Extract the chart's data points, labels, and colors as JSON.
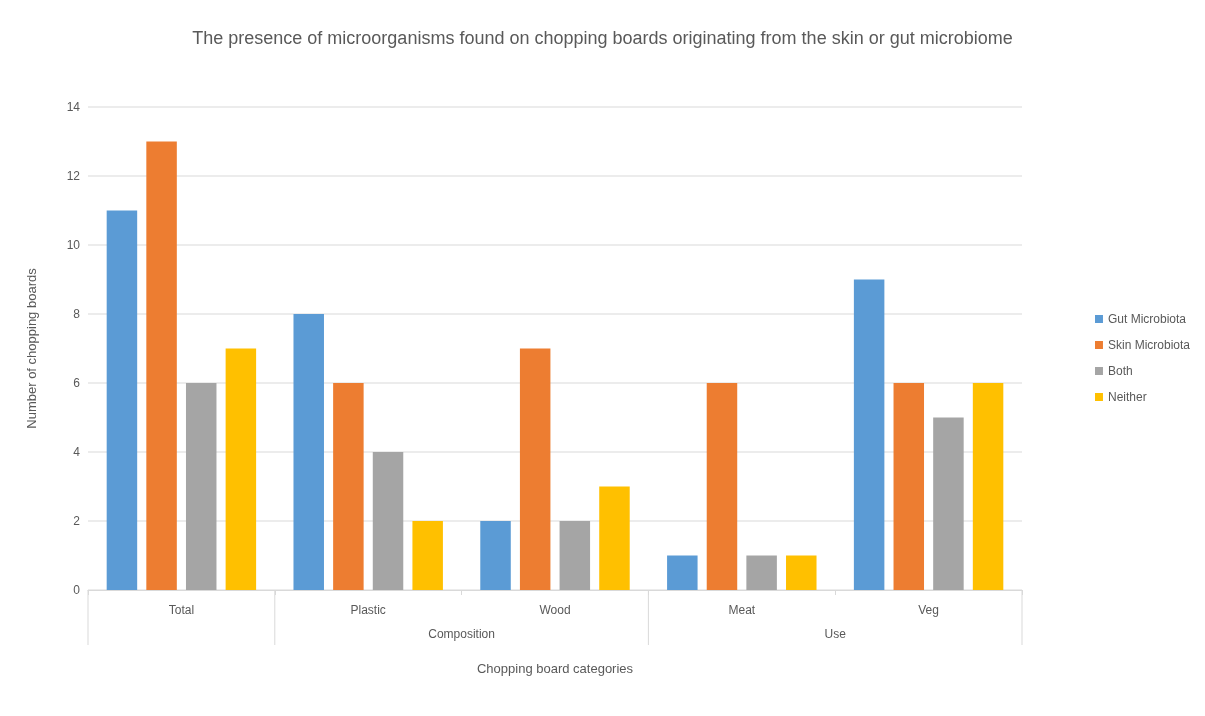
{
  "chart_data": {
    "type": "bar",
    "title": "The presence of microorganisms found on chopping boards originating from the skin or gut microbiome",
    "xlabel": "Chopping board categories",
    "ylabel": "Number of chopping boards",
    "categories": [
      "Total",
      "Plastic",
      "Wood",
      "Meat",
      "Veg"
    ],
    "series": [
      {
        "name": "Gut Microbiota",
        "color": "#5b9bd5",
        "values": [
          11,
          8,
          2,
          1,
          9
        ]
      },
      {
        "name": "Skin Microbiota",
        "color": "#ed7d31",
        "values": [
          13,
          6,
          7,
          6,
          6
        ]
      },
      {
        "name": "Both",
        "color": "#a5a5a5",
        "values": [
          6,
          4,
          2,
          1,
          5
        ]
      },
      {
        "name": "Neither",
        "color": "#ffc000",
        "values": [
          7,
          2,
          3,
          1,
          6
        ]
      }
    ],
    "annotations": [
      "Composition",
      "Use"
    ],
    "ylim": [
      0,
      14
    ],
    "yticks": [
      0,
      2,
      4,
      6,
      8,
      10,
      12,
      14
    ],
    "grid": "y",
    "legend": "right"
  }
}
